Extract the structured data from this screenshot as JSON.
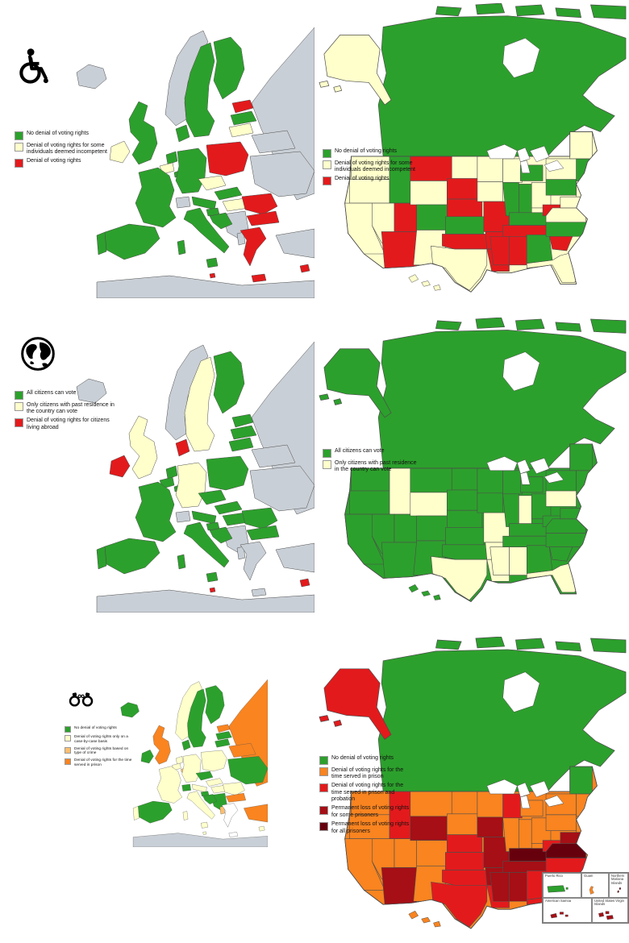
{
  "palette": {
    "green": "#2CA02C",
    "cream": "#FFFFCC",
    "red": "#E31A1C",
    "orange": "#F98420",
    "light_orange": "#FDBF6F",
    "dark_red": "#A50F15",
    "darkest_red": "#67000D",
    "gray": "#C9CFD6",
    "sea": "#FFFFFF"
  },
  "sections": {
    "disability": {
      "icon": "wheelchair",
      "eu_legend": [
        {
          "color": "#2CA02C",
          "label": "No denial of voting rights"
        },
        {
          "color": "#FFFFCC",
          "label": "Denial of voting rights for some individuals deemed incompetent"
        },
        {
          "color": "#E31A1C",
          "label": "Denial of voting rights"
        }
      ],
      "us_legend": [
        {
          "color": "#2CA02C",
          "label": "No denial of voting rights"
        },
        {
          "color": "#FFFFCC",
          "label": "Denial of voting rights for some individuals deemed incompetent"
        },
        {
          "color": "#E31A1C",
          "label": "Denial of voting rights"
        }
      ]
    },
    "abroad": {
      "icon": "globe",
      "eu_legend": [
        {
          "color": "#2CA02C",
          "label": "All citizens can vote"
        },
        {
          "color": "#FFFFCC",
          "label": "Only citizens with past residence in the country can vote"
        },
        {
          "color": "#E31A1C",
          "label": "Denial of voting rights for citizens living abroad"
        }
      ],
      "us_legend": [
        {
          "color": "#2CA02C",
          "label": "All citizens can vote"
        },
        {
          "color": "#FFFFCC",
          "label": "Only citizens with past residence in the country can vote"
        }
      ]
    },
    "prison": {
      "icon": "handcuffs",
      "eu_legend": [
        {
          "color": "#2CA02C",
          "label": "No denial of voting rights"
        },
        {
          "color": "#FFFFCC",
          "label": "Denial of voting rights only on a case-by-case basis"
        },
        {
          "color": "#FDBF6F",
          "label": "Denial of voting rights based on type of crime"
        },
        {
          "color": "#F98420",
          "label": "Denial of voting rights for the time served in prison"
        }
      ],
      "us_legend": [
        {
          "color": "#2CA02C",
          "label": "No denial of voting rights"
        },
        {
          "color": "#F98420",
          "label": "Denial of voting rights for the time served in prison"
        },
        {
          "color": "#E31A1C",
          "label": "Denial of voting rights for the time served in prison and probation"
        },
        {
          "color": "#A50F15",
          "label": "Permanent loss of voting rights for some prisoners"
        },
        {
          "color": "#67000D",
          "label": "Permanent loss of voting rights for all prisoners"
        }
      ]
    }
  },
  "inset": {
    "cells": [
      {
        "label": "Puerto Rico",
        "color": "#2CA02C"
      },
      {
        "label": "Guam",
        "color": "#F98420"
      },
      {
        "label": "Northern Mariana Islands",
        "color": "#67000D"
      },
      {
        "label": "American Samoa",
        "color": "#A50F15"
      },
      {
        "label": "United States Virgin Islands",
        "color": "#A50F15"
      }
    ]
  },
  "maps": {
    "eu_disability": {
      "regions": {
        "iceland": "gray",
        "norway": "gray",
        "sweden": "green",
        "finland": "green",
        "estonia": "red",
        "latvia": "green",
        "lithuania": "cream",
        "denmark": "green",
        "uk": "green",
        "ireland": "cream",
        "netherlands": "green",
        "belgium": "cream",
        "luxembourg": "green",
        "germany": "green",
        "poland": "red",
        "czech": "cream",
        "slovakia": "green",
        "austria": "green",
        "switzerland": "gray",
        "france": "green",
        "spain": "green",
        "portugal": "green",
        "italy": "green",
        "sicily": "green",
        "sardinia": "green",
        "slovenia": "green",
        "croatia": "green",
        "hungary": "cream",
        "romania": "red",
        "bulgaria": "red",
        "greece": "red",
        "crete": "red",
        "balkans": "gray",
        "albania": "gray",
        "ukraine": "gray",
        "belarus": "gray",
        "russia": "gray",
        "turkey": "gray",
        "cyprus": "red",
        "malta": "red",
        "africa": "gray"
      }
    },
    "eu_abroad": {
      "regions": {
        "iceland": "gray",
        "norway": "gray",
        "sweden": "cream",
        "finland": "green",
        "estonia": "green",
        "latvia": "green",
        "lithuania": "green",
        "denmark": "red",
        "uk": "cream",
        "ireland": "red",
        "netherlands": "green",
        "belgium": "green",
        "luxembourg": "green",
        "germany": "cream",
        "poland": "green",
        "czech": "green",
        "slovakia": "green",
        "austria": "green",
        "switzerland": "gray",
        "france": "green",
        "spain": "green",
        "portugal": "green",
        "italy": "green",
        "sicily": "green",
        "sardinia": "green",
        "slovenia": "green",
        "croatia": "green",
        "hungary": "green",
        "romania": "green",
        "bulgaria": "green",
        "greece": "gray",
        "crete": "gray",
        "balkans": "gray",
        "albania": "gray",
        "ukraine": "gray",
        "belarus": "gray",
        "russia": "gray",
        "turkey": "gray",
        "cyprus": "red",
        "malta": "red",
        "africa": "gray"
      }
    },
    "eu_prison": {
      "regions": {
        "iceland": "green",
        "norway": "cream",
        "sweden": "green",
        "finland": "green",
        "estonia": "orange",
        "latvia": "green",
        "lithuania": "green",
        "denmark": "green",
        "uk": "orange",
        "ireland": "green",
        "netherlands": "cream",
        "belgium": "cream",
        "luxembourg": "light_orange",
        "germany": "cream",
        "poland": "cream",
        "czech": "green",
        "slovakia": "cream",
        "austria": "cream",
        "switzerland": "green",
        "france": "cream",
        "spain": "green",
        "portugal": "cream",
        "italy": "cream",
        "sicily": "cream",
        "sardinia": "cream",
        "slovenia": "green",
        "croatia": "green",
        "hungary": "cream",
        "romania": "cream",
        "bulgaria": "orange",
        "greece": "sea",
        "crete": "sea",
        "balkans": "green",
        "albania": "light_orange",
        "ukraine": "green",
        "belarus": "orange",
        "russia": "orange",
        "turkey": "orange",
        "cyprus": "cream",
        "malta": "cream",
        "africa": "gray"
      }
    },
    "na_disability": {
      "regions": {
        "alaska": "cream",
        "canada": "green",
        "islands": "green",
        "us_base": "cream",
        "hawaii": "cream",
        "wa": "cream",
        "or": "cream",
        "ca": "cream",
        "id": "green",
        "nv": "cream",
        "ut": "red",
        "az": "red",
        "mt": "red",
        "wy": "cream",
        "co": "green",
        "nm": "cream",
        "nd": "cream",
        "sd": "red",
        "ne": "red",
        "ks": "green",
        "ok": "red",
        "tx": "cream",
        "mn": "cream",
        "ia": "cream",
        "mo": "red",
        "ar": "red",
        "la": "red",
        "wi": "cream",
        "il": "green",
        "in": "green",
        "oh": "cream",
        "mi": "green",
        "ky": "green",
        "tn": "red",
        "ms": "red",
        "al": "red",
        "ga": "green",
        "fl": "cream",
        "sc": "red",
        "nc": "green",
        "va": "cream",
        "wv": "red",
        "pa": "green",
        "ny": "cream",
        "nj": "cream",
        "mdde": "cream",
        "ne_eng": "green",
        "me": "cream"
      }
    },
    "na_abroad": {
      "regions": {
        "alaska": "green",
        "canada": "green",
        "islands": "green",
        "us_base": "green",
        "hawaii": "green",
        "wa": "green",
        "or": "green",
        "ca": "green",
        "id": "cream",
        "nv": "green",
        "ut": "green",
        "az": "green",
        "mt": "green",
        "wy": "cream",
        "co": "green",
        "nm": "green",
        "nd": "green",
        "sd": "green",
        "ne": "green",
        "ks": "green",
        "ok": "green",
        "tx": "cream",
        "mn": "green",
        "ia": "green",
        "mo": "cream",
        "ar": "cream",
        "la": "cream",
        "wi": "green",
        "il": "green",
        "in": "cream",
        "oh": "green",
        "mi": "green",
        "ky": "green",
        "tn": "green",
        "ms": "cream",
        "al": "cream",
        "ga": "green",
        "fl": "cream",
        "sc": "green",
        "nc": "green",
        "va": "green",
        "wv": "green",
        "pa": "cream",
        "ny": "green",
        "nj": "green",
        "mdde": "green",
        "ne_eng": "green",
        "me": "green"
      }
    },
    "na_prison": {
      "regions": {
        "alaska": "red",
        "canada": "green",
        "islands": "green",
        "us_base": "orange",
        "hawaii": "orange",
        "wa": "orange",
        "or": "orange",
        "ca": "orange",
        "id": "red",
        "nv": "orange",
        "ut": "orange",
        "az": "dark_red",
        "mt": "orange",
        "wy": "dark_red",
        "co": "orange",
        "nm": "orange",
        "nd": "orange",
        "sd": "orange",
        "ne": "red",
        "ks": "red",
        "ok": "red",
        "tx": "red",
        "mn": "orange",
        "ia": "dark_red",
        "mo": "dark_red",
        "ar": "dark_red",
        "la": "red",
        "wi": "red",
        "il": "orange",
        "in": "orange",
        "oh": "orange",
        "mi": "orange",
        "ky": "darkest_red",
        "tn": "dark_red",
        "ms": "dark_red",
        "al": "dark_red",
        "ga": "red",
        "fl": "red",
        "sc": "red",
        "nc": "red",
        "va": "darkest_red",
        "wv": "red",
        "pa": "orange",
        "ny": "orange",
        "nj": "orange",
        "mdde": "dark_red",
        "ne_eng": "orange",
        "me": "green"
      }
    }
  }
}
